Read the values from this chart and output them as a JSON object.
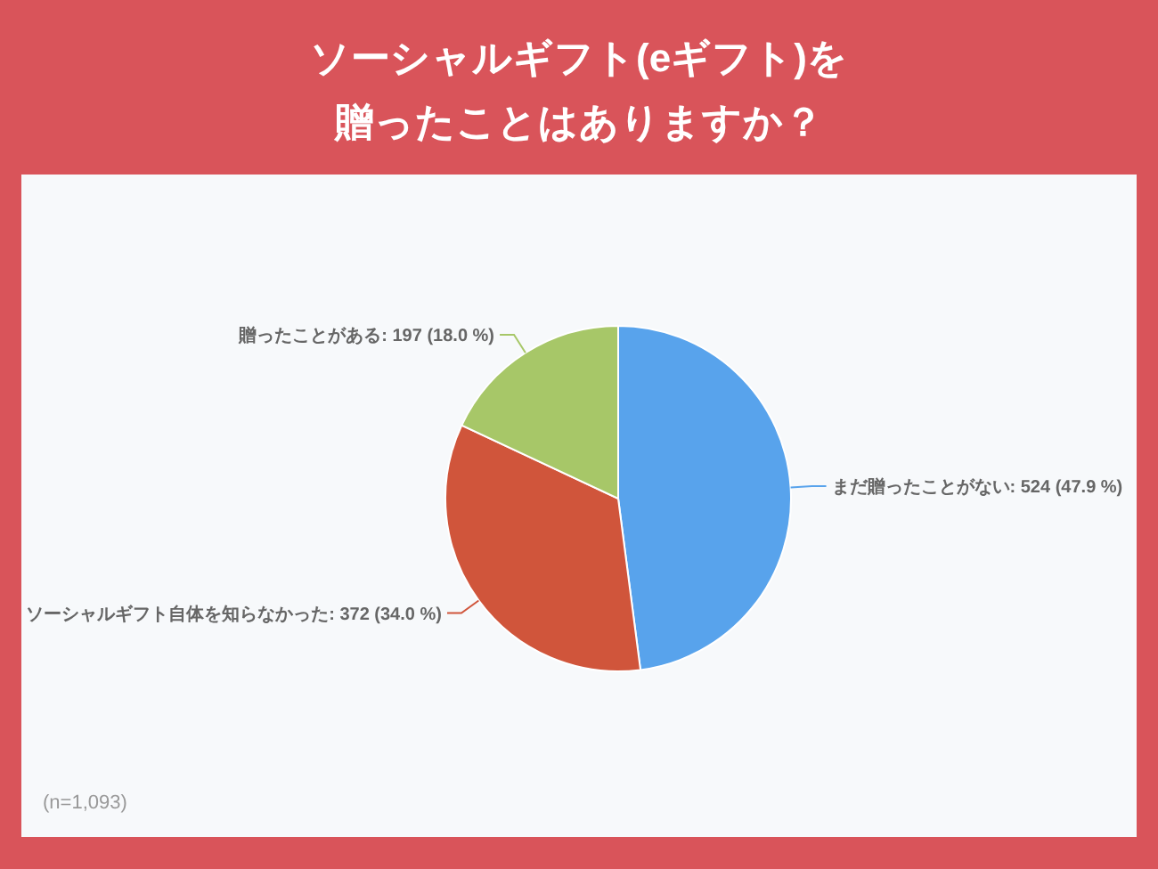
{
  "chart_data": {
    "type": "pie",
    "title": "ソーシャルギフト(eギフト)を贈ったことはありますか？",
    "categories": [
      "まだ贈ったことがない",
      "ソーシャルギフト自体を知らなかった",
      "贈ったことがある"
    ],
    "values": [
      524,
      372,
      197
    ],
    "value_labels": [
      "524 (47.9 %)",
      "372 (34.0 %)",
      "197 (18.0 %)"
    ],
    "colors": [
      "#58a3ec",
      "#d0553b",
      "#a7c768"
    ],
    "annotations": [
      "(n=1,093)"
    ]
  }
}
